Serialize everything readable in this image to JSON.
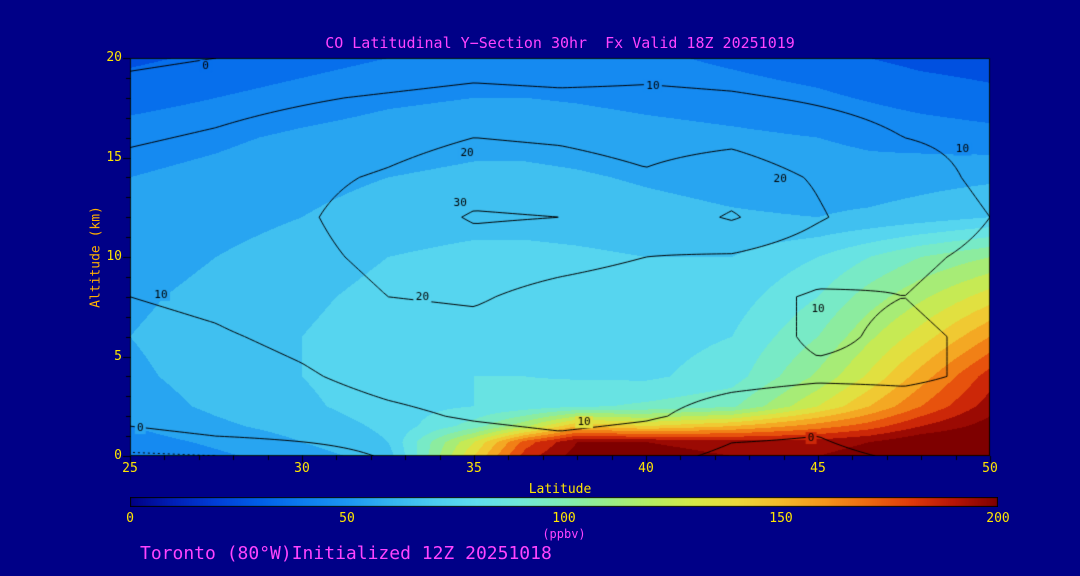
{
  "title": "CO Latitudinal Y−Section 30hr  Fx Valid 18Z 20251019",
  "footer": "Toronto (80°W)Initialized 12Z 20251018",
  "colors": {
    "background": "#000087",
    "title_text": "#FF44FF",
    "tick_text": "#FFE600",
    "altitude_label_text": "#FFB000",
    "contour_line": "#000000"
  },
  "chart_data": {
    "type": "heatmap",
    "title": "CO Latitudinal Y−Section 30hr  Fx Valid 18Z 20251019",
    "xlabel": "Latitude",
    "ylabel": "Altitude (km)",
    "xlim": [
      25,
      50
    ],
    "ylim": [
      0,
      20
    ],
    "x_ticks": [
      25,
      30,
      35,
      40,
      45,
      50
    ],
    "y_ticks": [
      0,
      5,
      10,
      15,
      20
    ],
    "x_minor_step": 1,
    "y_minor_step": 1,
    "colorbar": {
      "label": "(ppbv)",
      "min": 0,
      "max": 200,
      "ticks": [
        0,
        50,
        100,
        150,
        200
      ]
    },
    "color_scale": [
      [
        0,
        "#000085"
      ],
      [
        10,
        "#0020B8"
      ],
      [
        20,
        "#0040D8"
      ],
      [
        30,
        "#0060E8"
      ],
      [
        40,
        "#0D7EF0"
      ],
      [
        50,
        "#1C96F2"
      ],
      [
        60,
        "#34B4F0"
      ],
      [
        70,
        "#4CCCF0"
      ],
      [
        80,
        "#60DEEE"
      ],
      [
        90,
        "#70E8D8"
      ],
      [
        100,
        "#80ECB4"
      ],
      [
        110,
        "#98EC8A"
      ],
      [
        120,
        "#B6EC62"
      ],
      [
        130,
        "#D6E846"
      ],
      [
        140,
        "#ECD83A"
      ],
      [
        150,
        "#F4BA2A"
      ],
      [
        160,
        "#F4961C"
      ],
      [
        170,
        "#EE6A10"
      ],
      [
        180,
        "#E03A0A"
      ],
      [
        190,
        "#B81406"
      ],
      [
        200,
        "#7E0000"
      ]
    ],
    "fill_ppbv": {
      "lats": [
        25,
        27.5,
        30,
        32.5,
        35,
        36.5,
        38,
        40,
        42.5,
        45,
        46.5,
        48,
        50
      ],
      "alts": [
        0,
        0.7,
        1.5,
        2.5,
        4,
        6,
        8,
        10,
        12,
        14,
        16,
        18,
        20
      ],
      "values": [
        [
          40,
          48,
          55,
          65,
          140,
          185,
          205,
          205,
          200,
          200,
          205,
          215,
          220
        ],
        [
          45,
          52,
          60,
          70,
          130,
          175,
          200,
          200,
          195,
          195,
          200,
          210,
          215
        ],
        [
          50,
          58,
          64,
          72,
          95,
          118,
          150,
          140,
          150,
          165,
          175,
          190,
          205
        ],
        [
          55,
          62,
          68,
          75,
          80,
          84,
          88,
          92,
          98,
          130,
          150,
          170,
          195
        ],
        [
          58,
          64,
          70,
          76,
          80,
          80,
          79,
          78,
          85,
          112,
          132,
          155,
          185
        ],
        [
          60,
          65,
          70,
          75,
          78,
          78,
          77,
          76,
          80,
          100,
          118,
          135,
          160
        ],
        [
          58,
          63,
          68,
          73,
          76,
          76,
          75,
          73,
          75,
          90,
          105,
          118,
          135
        ],
        [
          55,
          60,
          65,
          70,
          73,
          73,
          72,
          70,
          70,
          80,
          90,
          100,
          110
        ],
        [
          52,
          56,
          60,
          64,
          66,
          66,
          65,
          63,
          61,
          60,
          62,
          65,
          70
        ],
        [
          50,
          53,
          57,
          60,
          62,
          62,
          61,
          59,
          57,
          55,
          54,
          56,
          58
        ],
        [
          45,
          48,
          52,
          55,
          57,
          57,
          56,
          54,
          52,
          50,
          48,
          46,
          44
        ],
        [
          36,
          40,
          44,
          48,
          50,
          50,
          49,
          47,
          45,
          42,
          39,
          36,
          33
        ],
        [
          28,
          32,
          36,
          40,
          44,
          45,
          44,
          42,
          38,
          34,
          30,
          27,
          25
        ]
      ]
    },
    "contour_overlay": {
      "levels": [
        0,
        10,
        20,
        30
      ],
      "dashed_levels": [
        -10
      ],
      "lats": [
        25,
        27.5,
        30,
        32.5,
        35,
        37.5,
        40,
        42.5,
        45,
        47.5,
        50
      ],
      "alts": [
        0,
        1,
        2,
        4,
        6,
        8,
        10,
        12,
        14,
        16,
        18,
        19,
        20
      ],
      "values": [
        [
          -12,
          -10,
          -5,
          1,
          4,
          5,
          3,
          -2,
          -2,
          1,
          1
        ],
        [
          -1,
          0,
          2,
          4,
          7,
          9,
          7,
          1,
          0,
          4,
          4
        ],
        [
          1,
          2,
          5,
          8,
          11,
          13,
          11,
          7,
          5,
          7,
          7
        ],
        [
          4,
          6,
          9,
          13,
          15,
          14,
          13,
          12,
          11,
          11,
          9
        ],
        [
          7,
          9,
          12,
          16,
          17,
          15,
          14,
          13,
          9,
          11,
          9
        ],
        [
          10,
          12,
          16,
          20,
          21,
          17,
          15,
          13,
          9,
          10,
          8
        ],
        [
          12,
          14,
          18,
          22,
          25,
          23,
          20,
          19,
          14,
          11,
          9
        ],
        [
          14,
          16,
          19,
          24,
          31,
          30,
          24,
          31,
          21,
          13,
          10
        ],
        [
          13,
          15,
          18,
          21,
          25,
          24,
          21,
          25,
          19,
          12,
          9
        ],
        [
          9,
          11,
          14,
          17,
          20,
          19,
          17,
          18,
          14,
          10,
          9
        ],
        [
          5,
          7,
          9,
          11,
          13,
          12,
          12,
          11,
          9,
          7,
          6
        ],
        [
          1,
          3,
          5,
          7,
          9,
          8,
          9,
          8,
          6,
          4,
          3
        ],
        [
          -2,
          0,
          2,
          4,
          6,
          5,
          7,
          5,
          3,
          1,
          0
        ]
      ],
      "labels": [
        {
          "lat": 27.2,
          "alt": 19.6,
          "text": "0"
        },
        {
          "lat": 40.2,
          "alt": 18.6,
          "text": "10"
        },
        {
          "lat": 34.8,
          "alt": 15.2,
          "text": "20"
        },
        {
          "lat": 49.2,
          "alt": 15.4,
          "text": "10"
        },
        {
          "lat": 43.9,
          "alt": 13.9,
          "text": "20"
        },
        {
          "lat": 34.6,
          "alt": 12.7,
          "text": "30"
        },
        {
          "lat": 25.9,
          "alt": 8.1,
          "text": "10"
        },
        {
          "lat": 33.5,
          "alt": 8.0,
          "text": "20"
        },
        {
          "lat": 45.0,
          "alt": 7.4,
          "text": "10"
        },
        {
          "lat": 38.2,
          "alt": 1.7,
          "text": "10"
        },
        {
          "lat": 25.3,
          "alt": 1.4,
          "text": "0"
        },
        {
          "lat": 44.8,
          "alt": 0.9,
          "text": "0"
        }
      ]
    }
  }
}
